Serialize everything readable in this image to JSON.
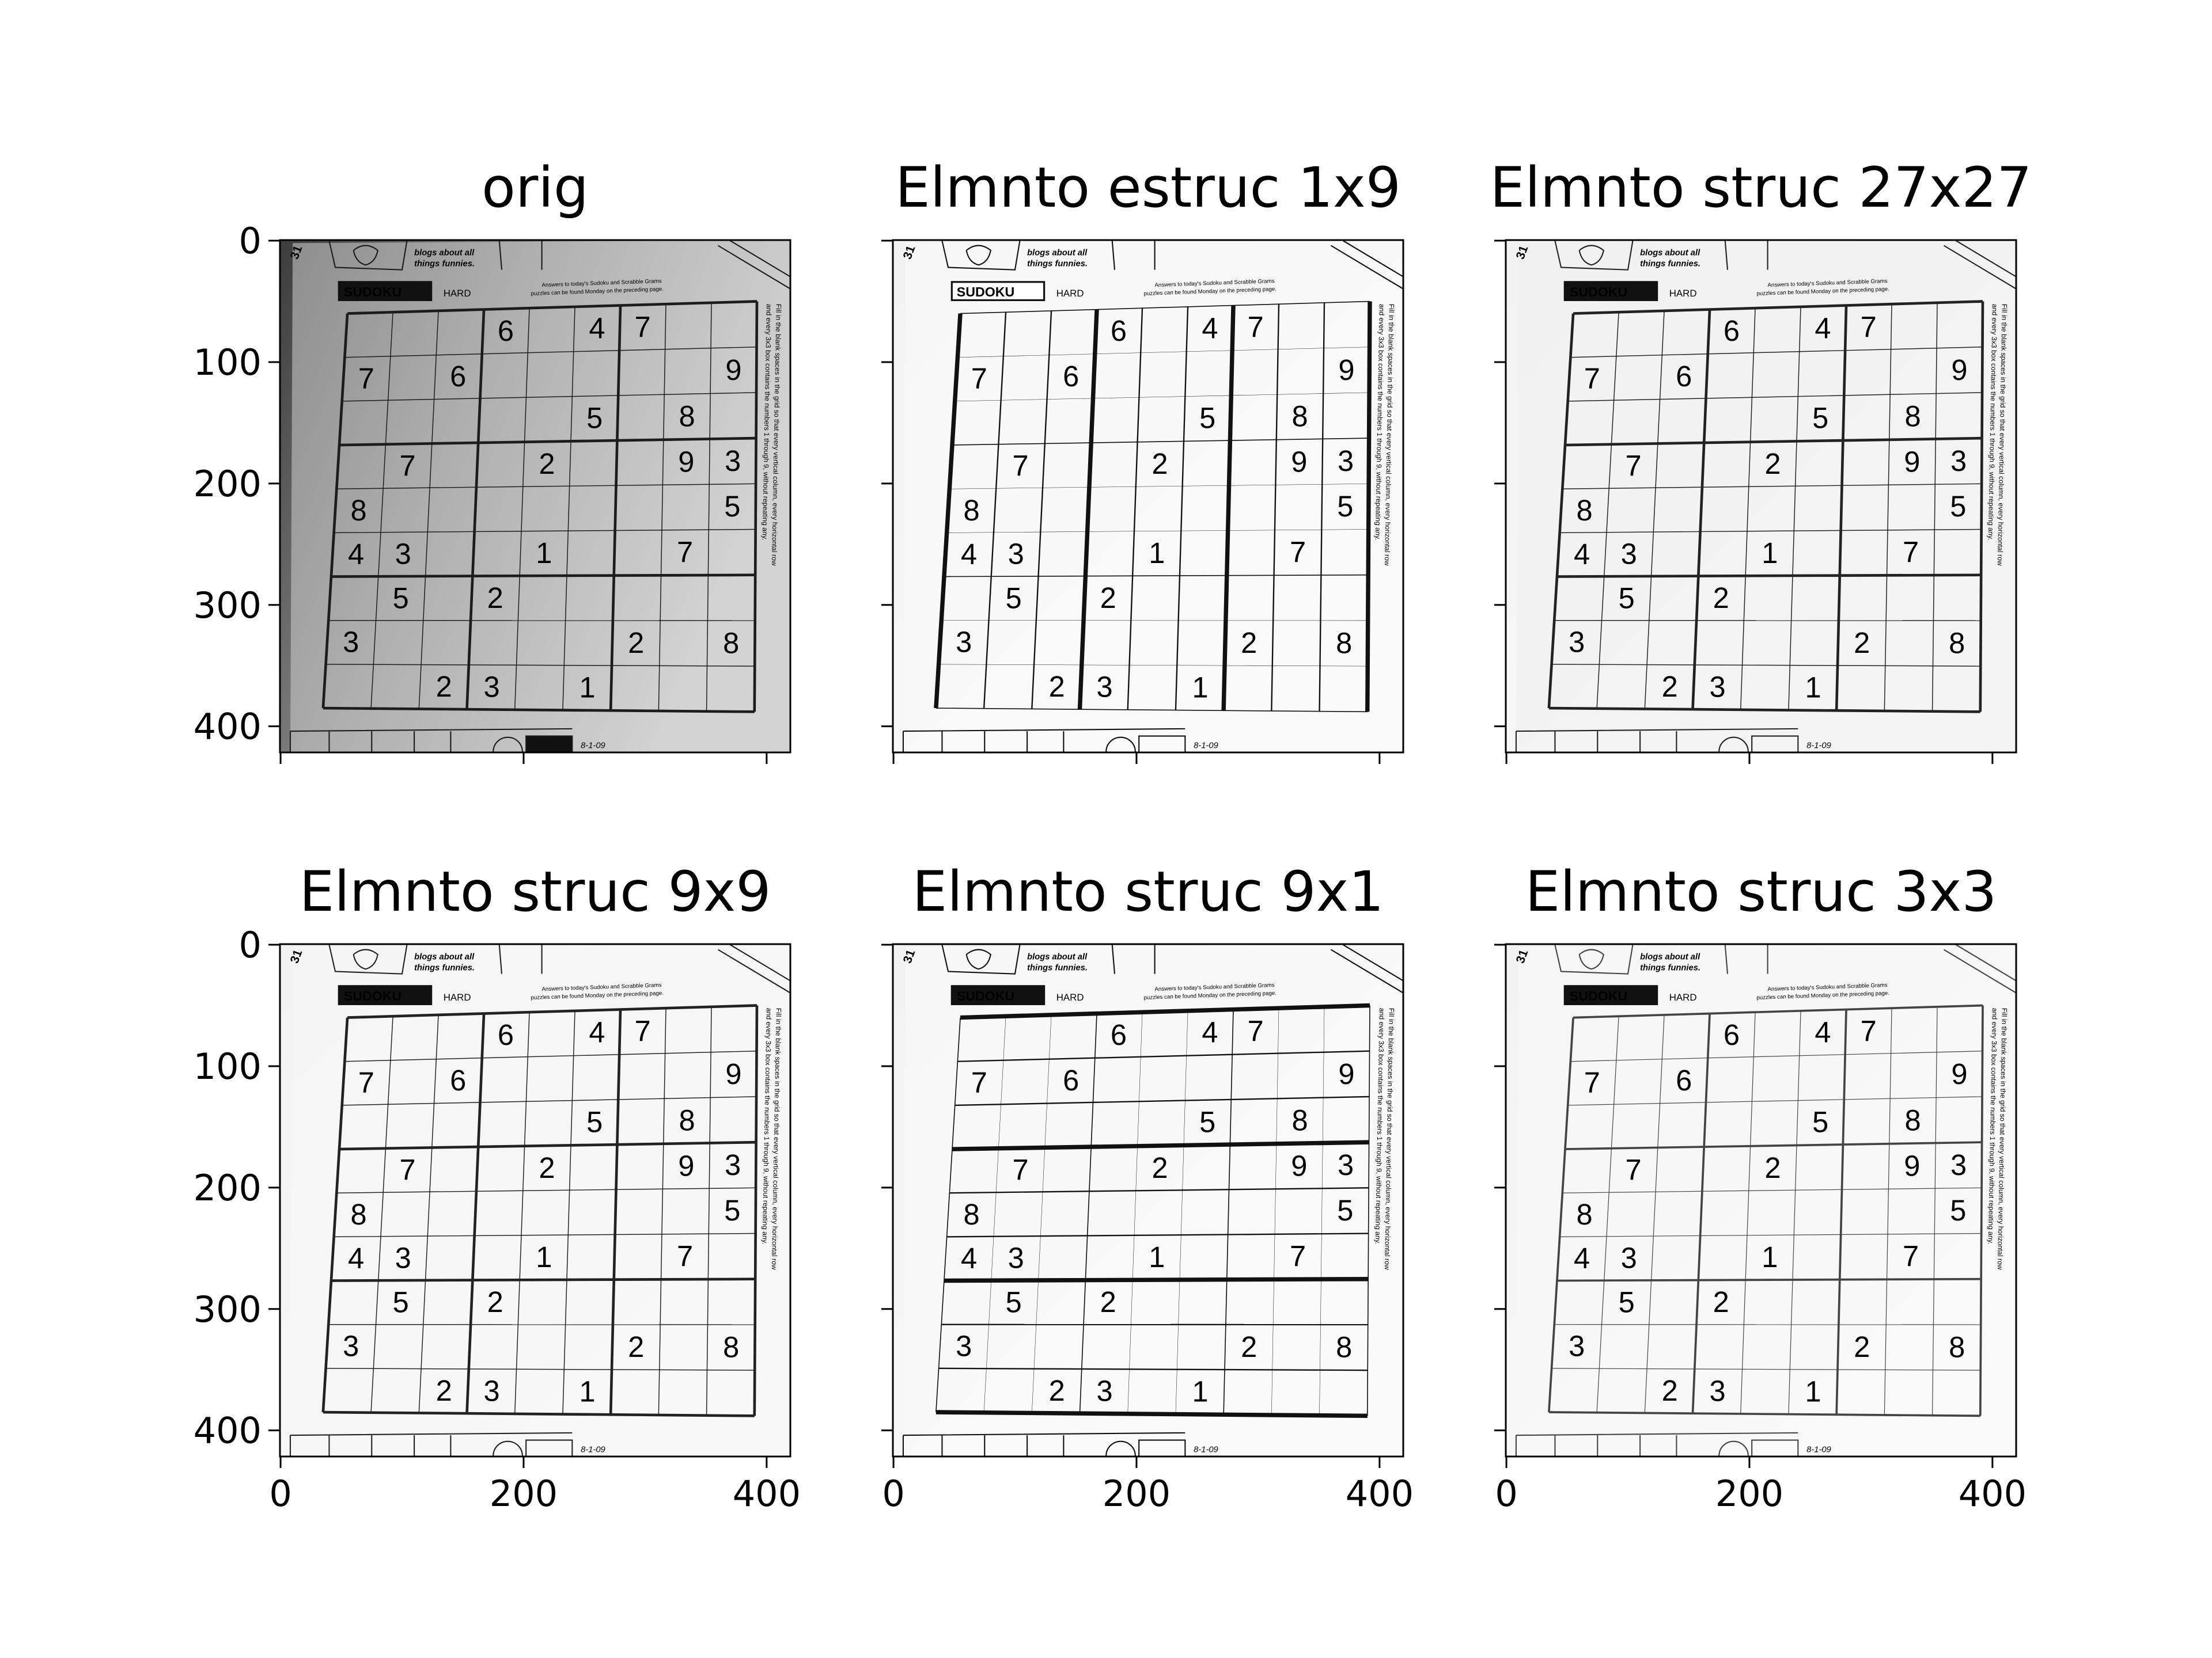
{
  "chart_data": [
    {
      "type": "image",
      "title": "orig",
      "xlim": [
        -0.5,
        419.5
      ],
      "ylim": [
        421.5,
        -0.5
      ],
      "yticks": [
        0,
        100,
        200,
        300,
        400
      ]
    },
    {
      "type": "image",
      "title": "Elmnto estruc 1x9",
      "xlim": [
        -0.5,
        419.5
      ],
      "ylim": [
        421.5,
        -0.5
      ]
    },
    {
      "type": "image",
      "title": "Elmnto struc 27x27",
      "xlim": [
        -0.5,
        419.5
      ],
      "ylim": [
        421.5,
        -0.5
      ]
    },
    {
      "type": "image",
      "title": "Elmnto struc 9x9",
      "xlim": [
        -0.5,
        419.5
      ],
      "ylim": [
        421.5,
        -0.5
      ],
      "xticks": [
        0,
        200,
        400
      ],
      "yticks": [
        0,
        100,
        200,
        300,
        400
      ]
    },
    {
      "type": "image",
      "title": "Elmnto struc 9x1",
      "xlim": [
        -0.5,
        419.5
      ],
      "ylim": [
        421.5,
        -0.5
      ],
      "xticks": [
        0,
        200,
        400
      ]
    },
    {
      "type": "image",
      "title": "Elmnto struc 3x3",
      "xlim": [
        -0.5,
        419.5
      ],
      "ylim": [
        421.5,
        -0.5
      ],
      "xticks": [
        0,
        200,
        400
      ]
    }
  ],
  "image_content": {
    "page": "31",
    "blogs": [
      "blogs about all",
      "things funnies."
    ],
    "logo": "SUDOKU",
    "level": "HARD",
    "answers": [
      "Answers to today's Sudoku and Scrabble Grams",
      "puzzles can be found Monday on the preceding page."
    ],
    "instructions": [
      "Fill in the blank spaces in the grid so that every vertical column, every horizontal row",
      "and every 3x3 box contains the numbers 1 through 9, without repeating any."
    ],
    "date": "8-1-09",
    "puzzle": [
      [
        null,
        null,
        null,
        6,
        null,
        4,
        7,
        null,
        null
      ],
      [
        7,
        null,
        6,
        null,
        null,
        null,
        null,
        null,
        9
      ],
      [
        null,
        null,
        null,
        null,
        null,
        5,
        null,
        8,
        null
      ],
      [
        null,
        7,
        null,
        null,
        2,
        null,
        null,
        9,
        3
      ],
      [
        8,
        null,
        null,
        null,
        null,
        null,
        null,
        null,
        5
      ],
      [
        4,
        3,
        null,
        null,
        1,
        null,
        null,
        7,
        null
      ],
      [
        null,
        5,
        null,
        2,
        null,
        null,
        null,
        null,
        null
      ],
      [
        3,
        null,
        null,
        null,
        null,
        null,
        2,
        null,
        8
      ],
      [
        null,
        null,
        2,
        3,
        null,
        1,
        null,
        null,
        null
      ]
    ]
  }
}
